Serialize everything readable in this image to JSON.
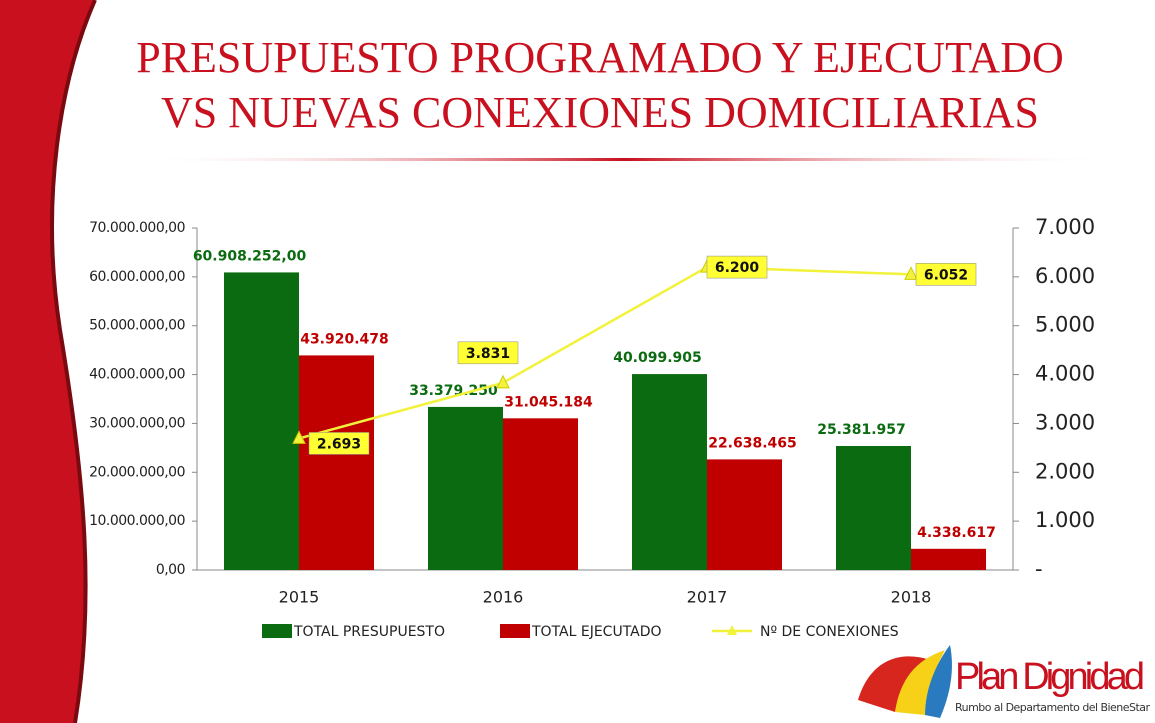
{
  "chart_data": {
    "type": "bar",
    "title": [
      "PRESUPUESTO PROGRAMADO Y EJECUTADO",
      "VS NUEVAS CONEXIONES DOMICILIARIAS"
    ],
    "categories": [
      "2015",
      "2016",
      "2017",
      "2018"
    ],
    "series": [
      {
        "name": "TOTAL PRESUPUESTO",
        "color": "#0b6b10",
        "values": [
          60908252,
          33379250,
          40099905,
          25381957
        ],
        "value_labels": [
          "60.908.252,00",
          "33.379.250",
          "40.099.905",
          "25.381.957"
        ]
      },
      {
        "name": "TOTAL EJECUTADO",
        "color": "#c00000",
        "values": [
          43920478,
          31045184,
          22638465,
          4338617
        ],
        "value_labels": [
          "43.920.478",
          "31.045.184",
          "22.638.465",
          "4.338.617"
        ]
      },
      {
        "name": "Nº DE CONEXIONES",
        "color": "#f2f23a",
        "axis": "y2",
        "type": "line",
        "values": [
          2693,
          3831,
          6200,
          6052
        ],
        "value_labels": [
          "2.693",
          "3.831",
          "6.200",
          "6.052"
        ]
      }
    ],
    "ylim": [
      0,
      70000000
    ],
    "yticks": [
      {
        "value": 0,
        "label": "0,00"
      },
      {
        "value": 10000000,
        "label": "10.000.000,00"
      },
      {
        "value": 20000000,
        "label": "20.000.000,00"
      },
      {
        "value": 30000000,
        "label": "30.000.000,00"
      },
      {
        "value": 40000000,
        "label": "40.000.000,00"
      },
      {
        "value": 50000000,
        "label": "50.000.000,00"
      },
      {
        "value": 60000000,
        "label": "60.000.000,00"
      },
      {
        "value": 70000000,
        "label": "70.000.000,00"
      }
    ],
    "y2lim": [
      0,
      7000
    ],
    "y2ticks": [
      {
        "value": 0,
        "label": "-"
      },
      {
        "value": 1000,
        "label": "1.000"
      },
      {
        "value": 2000,
        "label": "2.000"
      },
      {
        "value": 3000,
        "label": "3.000"
      },
      {
        "value": 4000,
        "label": "4.000"
      },
      {
        "value": 5000,
        "label": "5.000"
      },
      {
        "value": 6000,
        "label": "6.000"
      },
      {
        "value": 7000,
        "label": "7.000"
      }
    ],
    "legend": "bottom"
  },
  "logo": {
    "title": "Plan Dignidad",
    "subtitle": "Rumbo al Departamento del BieneStar"
  }
}
